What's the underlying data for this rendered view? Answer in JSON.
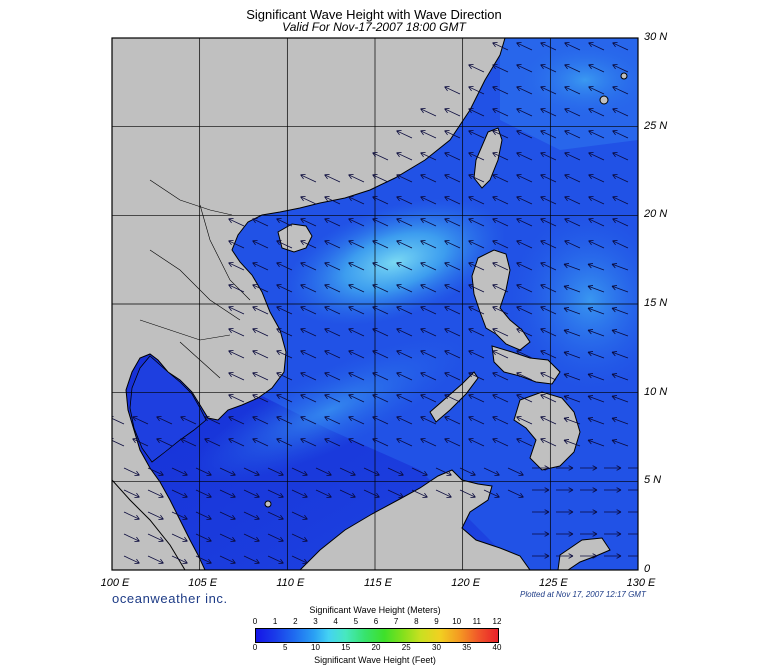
{
  "title": "Significant Wave Height with Wave Direction",
  "subtitle": "Valid For Nov-17-2007 18:00 GMT",
  "lat_labels": [
    "30 N",
    "25 N",
    "20 N",
    "15 N",
    "10 N",
    "5 N",
    "0"
  ],
  "lon_labels": [
    "100 E",
    "105 E",
    "110 E",
    "115 E",
    "120 E",
    "125 E",
    "130 E"
  ],
  "brand": "oceanweather inc.",
  "plotted": "Plotted at Nov 17, 2007 12:17 GMT",
  "legend": {
    "meters_title": "Significant Wave Height (Meters)",
    "meters_ticks": [
      "0",
      "1",
      "2",
      "3",
      "4",
      "5",
      "6",
      "7",
      "8",
      "9",
      "10",
      "11",
      "12"
    ],
    "feet_title": "Significant Wave Height (Feet)",
    "feet_ticks": [
      "0",
      "5",
      "10",
      "15",
      "20",
      "25",
      "30",
      "35",
      "40"
    ]
  },
  "colors": {
    "land": "#c0c0c0",
    "ocean_deep": "#1a2fd8",
    "ocean_mid": "#1f63ea",
    "ocean_high": "#3aa0f0",
    "ocean_peak": "#6cd8f2"
  },
  "icons": {
    "wave_arrow": "wave-direction-arrow"
  }
}
